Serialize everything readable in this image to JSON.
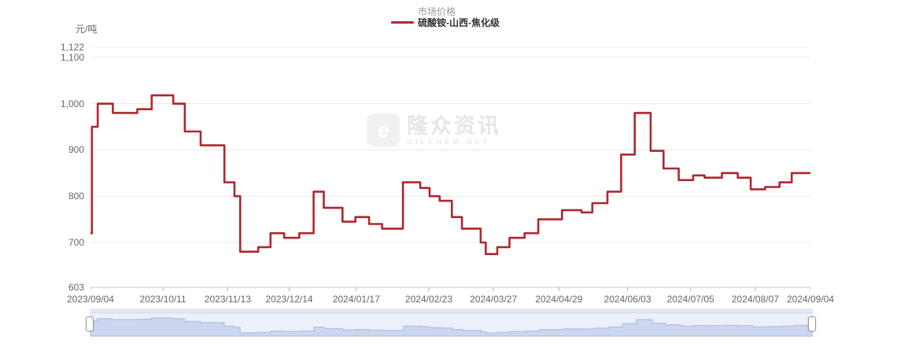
{
  "unit_label": "元/吨",
  "legend": {
    "series_type_label": "市场价格",
    "series_name": "硫酸铵-山西-焦化级",
    "marker_color": "#ab2a34"
  },
  "watermark": {
    "logo_letter": "e",
    "title": "隆众资讯",
    "subtitle": "OILCHEM NET"
  },
  "colors": {
    "line": "#b0262f",
    "grid": "#e9e9e9",
    "axis": "#c9c9c9",
    "tick": "#b5b5b5",
    "label": "#666666",
    "nav_fill": "#ccd6ee",
    "nav_stroke": "#a9b8e2",
    "nav_bg": "#ecf0fb",
    "track_bg": "#e4e7f0",
    "handle_border": "#999999"
  },
  "chart_data": {
    "type": "line",
    "step": true,
    "title": "",
    "xlabel": "",
    "ylabel": "元/吨",
    "ylim": [
      603,
      1122
    ],
    "grid": true,
    "legend_position": "top",
    "y_ticks": [
      {
        "label": "1,122",
        "value": 1122
      },
      {
        "label": "1,100",
        "value": 1100
      },
      {
        "label": "1,000",
        "value": 1000
      },
      {
        "label": "900",
        "value": 900
      },
      {
        "label": "800",
        "value": 800
      },
      {
        "label": "700",
        "value": 700
      },
      {
        "label": "603",
        "value": 603
      }
    ],
    "x_ticks": [
      {
        "label": "2023/09/04",
        "t": 0.0
      },
      {
        "label": "2023/10/11",
        "t": 0.1007
      },
      {
        "label": "2023/11/13",
        "t": 0.1906
      },
      {
        "label": "2023/12/14",
        "t": 0.276
      },
      {
        "label": "2024/01/17",
        "t": 0.3691
      },
      {
        "label": "2024/02/23",
        "t": 0.4699
      },
      {
        "label": "2024/03/27",
        "t": 0.5597
      },
      {
        "label": "2024/04/29",
        "t": 0.6506
      },
      {
        "label": "2024/06/03",
        "t": 0.7459
      },
      {
        "label": "2024/07/05",
        "t": 0.8335
      },
      {
        "label": "2024/08/07",
        "t": 0.9234
      },
      {
        "label": "2024/09/04",
        "t": 1.0
      }
    ],
    "series": [
      {
        "name": "硫酸铵-山西-焦化级",
        "color": "#b0262f",
        "points": [
          [
            0.0,
            720
          ],
          [
            0.002,
            950
          ],
          [
            0.01,
            1000
          ],
          [
            0.031,
            980
          ],
          [
            0.065,
            988
          ],
          [
            0.085,
            1018
          ],
          [
            0.115,
            1000
          ],
          [
            0.131,
            940
          ],
          [
            0.153,
            910
          ],
          [
            0.186,
            830
          ],
          [
            0.2,
            800
          ],
          [
            0.208,
            680
          ],
          [
            0.233,
            690
          ],
          [
            0.25,
            720
          ],
          [
            0.269,
            710
          ],
          [
            0.29,
            720
          ],
          [
            0.31,
            810
          ],
          [
            0.324,
            775
          ],
          [
            0.35,
            745
          ],
          [
            0.368,
            755
          ],
          [
            0.387,
            740
          ],
          [
            0.405,
            730
          ],
          [
            0.434,
            830
          ],
          [
            0.458,
            818
          ],
          [
            0.471,
            800
          ],
          [
            0.485,
            790
          ],
          [
            0.502,
            755
          ],
          [
            0.516,
            730
          ],
          [
            0.542,
            700
          ],
          [
            0.549,
            675
          ],
          [
            0.565,
            690
          ],
          [
            0.582,
            710
          ],
          [
            0.603,
            720
          ],
          [
            0.622,
            750
          ],
          [
            0.655,
            770
          ],
          [
            0.682,
            765
          ],
          [
            0.697,
            785
          ],
          [
            0.718,
            810
          ],
          [
            0.737,
            890
          ],
          [
            0.756,
            980
          ],
          [
            0.778,
            898
          ],
          [
            0.796,
            860
          ],
          [
            0.817,
            835
          ],
          [
            0.837,
            845
          ],
          [
            0.853,
            840
          ],
          [
            0.877,
            850
          ],
          [
            0.899,
            840
          ],
          [
            0.917,
            815
          ],
          [
            0.937,
            820
          ],
          [
            0.957,
            830
          ],
          [
            0.974,
            850
          ],
          [
            1.0,
            850
          ]
        ]
      }
    ]
  }
}
